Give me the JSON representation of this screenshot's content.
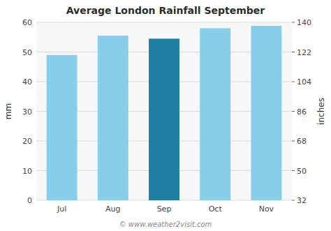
{
  "chart_data": {
    "type": "bar",
    "title": "Average London Rainfall September",
    "categories": [
      "Jul",
      "Aug",
      "Sep",
      "Oct",
      "Nov"
    ],
    "values": [
      49.0,
      55.5,
      54.5,
      58.0,
      58.8
    ],
    "colors": [
      "#87CEEB",
      "#87CEEB",
      "#1E7EA1",
      "#87CEEB",
      "#87CEEB"
    ],
    "ylabel": "mm",
    "y2label": "inches",
    "ylim": [
      0,
      60
    ],
    "yticks": [
      0,
      10,
      20,
      30,
      40,
      50,
      60
    ],
    "y2lim": [
      32,
      140
    ],
    "y2ticks": [
      32,
      50,
      68,
      86,
      104,
      122,
      140
    ],
    "grid": true,
    "annotations": [
      "© www.weather2visit.com"
    ]
  }
}
